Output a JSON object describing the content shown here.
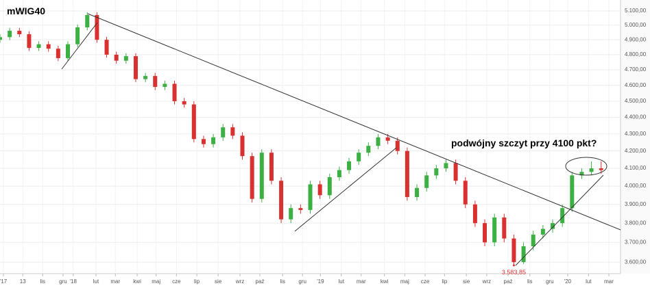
{
  "chart_data": {
    "type": "candlestick",
    "title": "mWIG40",
    "annotation": "podwójny szczyt przy 4100 pkt?",
    "min_label": {
      "value": 3583.85,
      "label": "3.583,85",
      "x": 106
    },
    "up_color": "#3cb043",
    "down_color": "#d93030",
    "grid": true,
    "ylog": true,
    "xlim": [
      0,
      128
    ],
    "ylim": [
      3543,
      5178
    ],
    "xticks": [
      {
        "value": 0.7,
        "label": "'17"
      },
      {
        "value": 4.7,
        "label": "13"
      },
      {
        "value": 8.8,
        "label": "lis"
      },
      {
        "value": 13.0,
        "label": "gru"
      },
      {
        "value": 15.1,
        "label": "'18"
      },
      {
        "value": 19.8,
        "label": "lut"
      },
      {
        "value": 23.8,
        "label": "mar"
      },
      {
        "value": 28.3,
        "label": "kwi"
      },
      {
        "value": 32.2,
        "label": "maj"
      },
      {
        "value": 36.4,
        "label": "cze"
      },
      {
        "value": 40.6,
        "label": "lip"
      },
      {
        "value": 45.0,
        "label": "sie"
      },
      {
        "value": 49.5,
        "label": "wrz"
      },
      {
        "value": 53.6,
        "label": "paź"
      },
      {
        "value": 58.3,
        "label": "lis"
      },
      {
        "value": 62.4,
        "label": "gru"
      },
      {
        "value": 66.1,
        "label": "'19"
      },
      {
        "value": 70.4,
        "label": "lut"
      },
      {
        "value": 74.5,
        "label": "mar"
      },
      {
        "value": 79.3,
        "label": "kwi"
      },
      {
        "value": 83.5,
        "label": "maj"
      },
      {
        "value": 87.7,
        "label": "cze"
      },
      {
        "value": 91.7,
        "label": "lip"
      },
      {
        "value": 96.2,
        "label": "sie"
      },
      {
        "value": 100.4,
        "label": "wrz"
      },
      {
        "value": 104.8,
        "label": "paź"
      },
      {
        "value": 109.3,
        "label": "lis"
      },
      {
        "value": 113.4,
        "label": "gru"
      },
      {
        "value": 117.1,
        "label": "'20"
      },
      {
        "value": 121.4,
        "label": "lut"
      },
      {
        "value": 125.6,
        "label": "mar"
      }
    ],
    "yticks": [
      {
        "value": 5100,
        "label": "5.100,00"
      },
      {
        "value": 5000,
        "label": "5.000,00"
      },
      {
        "value": 4900,
        "label": "4.900,00"
      },
      {
        "value": 4800,
        "label": "4.800,00"
      },
      {
        "value": 4700,
        "label": "4.700,00"
      },
      {
        "value": 4600,
        "label": "4.600,00"
      },
      {
        "value": 4500,
        "label": "4.500,00"
      },
      {
        "value": 4400,
        "label": "4.400,00"
      },
      {
        "value": 4300,
        "label": "4.300,00"
      },
      {
        "value": 4200,
        "label": "4.200,00"
      },
      {
        "value": 4100,
        "label": "4.100,00"
      },
      {
        "value": 4000,
        "label": "4.000,00"
      },
      {
        "value": 3900,
        "label": "3.900,00"
      },
      {
        "value": 3800,
        "label": "3.800,00"
      },
      {
        "value": 3700,
        "label": "3.700,00"
      },
      {
        "value": 3600,
        "label": "3.600,00"
      }
    ],
    "x": [
      0,
      2,
      4,
      6,
      8,
      10,
      12,
      14,
      16,
      18,
      20,
      22,
      24,
      26,
      28,
      30,
      32,
      34,
      36,
      38,
      40,
      42,
      44,
      46,
      48,
      50,
      52,
      54,
      56,
      58,
      60,
      62,
      64,
      66,
      68,
      70,
      72,
      74,
      76,
      78,
      80,
      82,
      84,
      86,
      88,
      90,
      92,
      94,
      96,
      98,
      100,
      102,
      104,
      106,
      108,
      110,
      112,
      114,
      116,
      118,
      120,
      122,
      124
    ],
    "open": [
      4900,
      4918,
      4962,
      4938,
      4845,
      4870,
      4840,
      4777,
      4870,
      4985,
      5071,
      4900,
      4800,
      4760,
      4790,
      4640,
      4660,
      4590,
      4610,
      4500,
      4480,
      4270,
      4240,
      4280,
      4340,
      4290,
      4170,
      3930,
      4190,
      4030,
      3820,
      3880,
      3870,
      4010,
      3950,
      4050,
      4090,
      4140,
      4190,
      4230,
      4280,
      4260,
      4200,
      3940,
      3990,
      4060,
      4100,
      4130,
      4030,
      3900,
      3800,
      3700,
      3830,
      3720,
      3600,
      3680,
      3740,
      3770,
      3800,
      3880,
      4060,
      4080,
      4100
    ],
    "high": [
      4938,
      4982,
      4982,
      4958,
      4890,
      4890,
      4860,
      4890,
      5005,
      5091,
      5091,
      4920,
      4820,
      4810,
      4810,
      4680,
      4680,
      4630,
      4630,
      4520,
      4500,
      4290,
      4300,
      4360,
      4360,
      4310,
      4190,
      4210,
      4210,
      4050,
      3900,
      3900,
      4030,
      4030,
      4070,
      4110,
      4160,
      4210,
      4250,
      4300,
      4300,
      4280,
      4220,
      4010,
      4080,
      4120,
      4150,
      4150,
      4050,
      3920,
      3820,
      3850,
      3850,
      3740,
      3700,
      3760,
      3790,
      3820,
      3900,
      4080,
      4100,
      4140,
      4140
    ],
    "low": [
      4880,
      4898,
      4918,
      4825,
      4825,
      4820,
      4757,
      4757,
      4850,
      4965,
      4880,
      4780,
      4740,
      4740,
      4620,
      4620,
      4570,
      4570,
      4480,
      4460,
      4250,
      4220,
      4220,
      4260,
      4270,
      4150,
      3910,
      3910,
      4010,
      3800,
      3800,
      3850,
      3850,
      3930,
      3930,
      4030,
      4070,
      4120,
      4170,
      4210,
      4240,
      4180,
      3920,
      3920,
      3970,
      4040,
      4080,
      4010,
      3880,
      3780,
      3680,
      3680,
      3700,
      3583.85,
      3590,
      3660,
      3720,
      3750,
      3780,
      3860,
      4040,
      4060,
      4070
    ],
    "close": [
      4918,
      4962,
      4938,
      4845,
      4870,
      4840,
      4777,
      4870,
      4985,
      5071,
      4900,
      4800,
      4760,
      4790,
      4640,
      4660,
      4590,
      4610,
      4500,
      4480,
      4270,
      4240,
      4280,
      4340,
      4290,
      4170,
      3930,
      4190,
      4030,
      3820,
      3880,
      3870,
      4010,
      3950,
      4050,
      4090,
      4140,
      4190,
      4230,
      4280,
      4260,
      4200,
      3940,
      3990,
      4060,
      4100,
      4130,
      4030,
      3900,
      3800,
      3700,
      3830,
      3720,
      3600,
      3680,
      3740,
      3770,
      3800,
      3880,
      4060,
      4080,
      4100,
      4090
    ]
  }
}
